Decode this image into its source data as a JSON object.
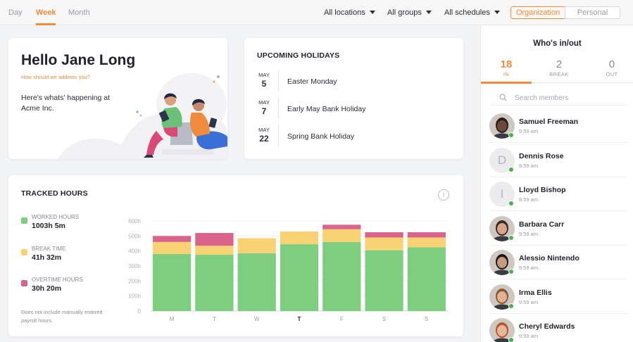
{
  "view_tabs": [
    "Day",
    "Week",
    "Month"
  ],
  "filters": [
    "All locations",
    "All groups",
    "All schedules"
  ],
  "scope_toggle": {
    "organization": "Organization",
    "personal": "Personal"
  },
  "greeting": {
    "title": "Hello Jane Long",
    "address_link": "How should we address you?",
    "message": "Here's whats' happening at Acme Inc."
  },
  "holidays": {
    "title": "UPCOMING HOLIDAYS",
    "items": [
      {
        "month": "MAY",
        "day": "5",
        "name": "Easter Monday"
      },
      {
        "month": "MAY",
        "day": "7",
        "name": "Early May Bank Holiday"
      },
      {
        "month": "MAY",
        "day": "22",
        "name": "Spring Bank Holiday"
      }
    ]
  },
  "tracked": {
    "title": "TRACKED HOURS",
    "info_icon": "i",
    "legend": [
      {
        "label": "WORKED HOURS",
        "value": "1003h 5m"
      },
      {
        "label": "BREAK TIME",
        "value": "41h 32m"
      },
      {
        "label": "OVERTIME HOURS",
        "value": "30h 20m"
      }
    ],
    "note": "Does not include manually entered payroll hours."
  },
  "colors": {
    "accent": "#f08a3c",
    "worked": "#7dcf7f",
    "break": "#f9d273",
    "overtime": "#d9638a",
    "online": "#4caf50"
  },
  "chart_data": {
    "type": "bar",
    "stacked": true,
    "categories": [
      "M",
      "T",
      "W",
      "T",
      "F",
      "S",
      "S"
    ],
    "highlight_category_index": 3,
    "y_ticks": [
      "0",
      "100h",
      "200h",
      "300h",
      "400h",
      "500h",
      "600h"
    ],
    "ylim": [
      0,
      600
    ],
    "series": [
      {
        "name": "WORKED HOURS",
        "values": [
          380,
          375,
          385,
          445,
          460,
          405,
          425
        ]
      },
      {
        "name": "BREAK TIME",
        "values": [
          80,
          60,
          100,
          85,
          85,
          85,
          65
        ]
      },
      {
        "name": "OVERTIME HOURS",
        "values": [
          40,
          85,
          0,
          0,
          30,
          35,
          35
        ]
      }
    ]
  },
  "whos_in": {
    "title": "Who's in/out",
    "stats": [
      {
        "count": "18",
        "label": "IN"
      },
      {
        "count": "2",
        "label": "BREAK"
      },
      {
        "count": "0",
        "label": "OUT"
      }
    ],
    "search_placeholder": "Search members",
    "members": [
      {
        "name": "Samuel Freeman",
        "time": "9:59 am",
        "initial": "",
        "skin": "#6b4a3a",
        "hair": "#2a1e18"
      },
      {
        "name": "Dennis Rose",
        "time": "9:59 am",
        "initial": "D",
        "skin": "",
        "hair": ""
      },
      {
        "name": "Lloyd Bishop",
        "time": "9:59 am",
        "initial": "I",
        "skin": "",
        "hair": ""
      },
      {
        "name": "Barbara Carr",
        "time": "9:59 am",
        "initial": "",
        "skin": "#d9a58a",
        "hair": "#3a2a22"
      },
      {
        "name": "Alessio Nintendo",
        "time": "9:59 am",
        "initial": "",
        "skin": "#c89a80",
        "hair": "#1e1a18"
      },
      {
        "name": "Irma Ellis",
        "time": "9:59 am",
        "initial": "",
        "skin": "#e2b293",
        "hair": "#8a5a2e"
      },
      {
        "name": "Cheryl Edwards",
        "time": "9:59 am",
        "initial": "",
        "skin": "#e8b89a",
        "hair": "#b5562e"
      }
    ]
  }
}
